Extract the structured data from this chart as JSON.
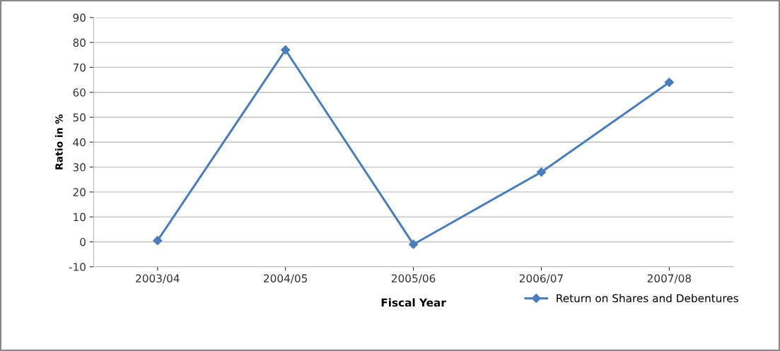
{
  "chart_data": {
    "type": "line",
    "xlabel": "Fiscal Year",
    "ylabel": "Ratio in %",
    "categories": [
      "2003/04",
      "2004/05",
      "2005/06",
      "2006/07",
      "2007/08"
    ],
    "series": [
      {
        "name": "Return on Shares and Debentures",
        "color": "#4a7ebb",
        "values": [
          0.5,
          77,
          -1,
          28,
          64
        ]
      }
    ],
    "ylim": [
      -10,
      90
    ],
    "yticks": [
      -10,
      0,
      10,
      20,
      30,
      40,
      50,
      60,
      70,
      80,
      90
    ],
    "grid": "y",
    "legend": "bottom right",
    "marker": "diamond",
    "line_style": "solid"
  }
}
